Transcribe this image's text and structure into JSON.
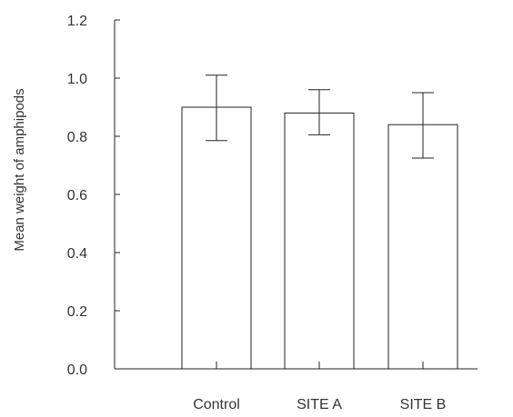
{
  "chart_data": {
    "type": "bar",
    "title": "",
    "xlabel": "",
    "ylabel": "Mean weight of amphipods",
    "categories": [
      "Control",
      "SITE A",
      "SITE B"
    ],
    "values": [
      0.9,
      0.88,
      0.84
    ],
    "error_upper": [
      1.01,
      0.96,
      0.95
    ],
    "error_lower": [
      0.785,
      0.805,
      0.725
    ],
    "ylim": [
      0,
      1.2
    ],
    "yticks": [
      0.0,
      0.2,
      0.4,
      0.6,
      0.8,
      1.0,
      1.2
    ],
    "ytick_labels": [
      "0.0",
      "0.2",
      "0.4",
      "0.6",
      "0.8",
      "1.0",
      "1.2"
    ],
    "grid": false,
    "legend": "none",
    "colors": {
      "bar_fill": "#ffffff",
      "bar_stroke": "#222222",
      "axis": "#222222",
      "text": "#333333"
    }
  }
}
